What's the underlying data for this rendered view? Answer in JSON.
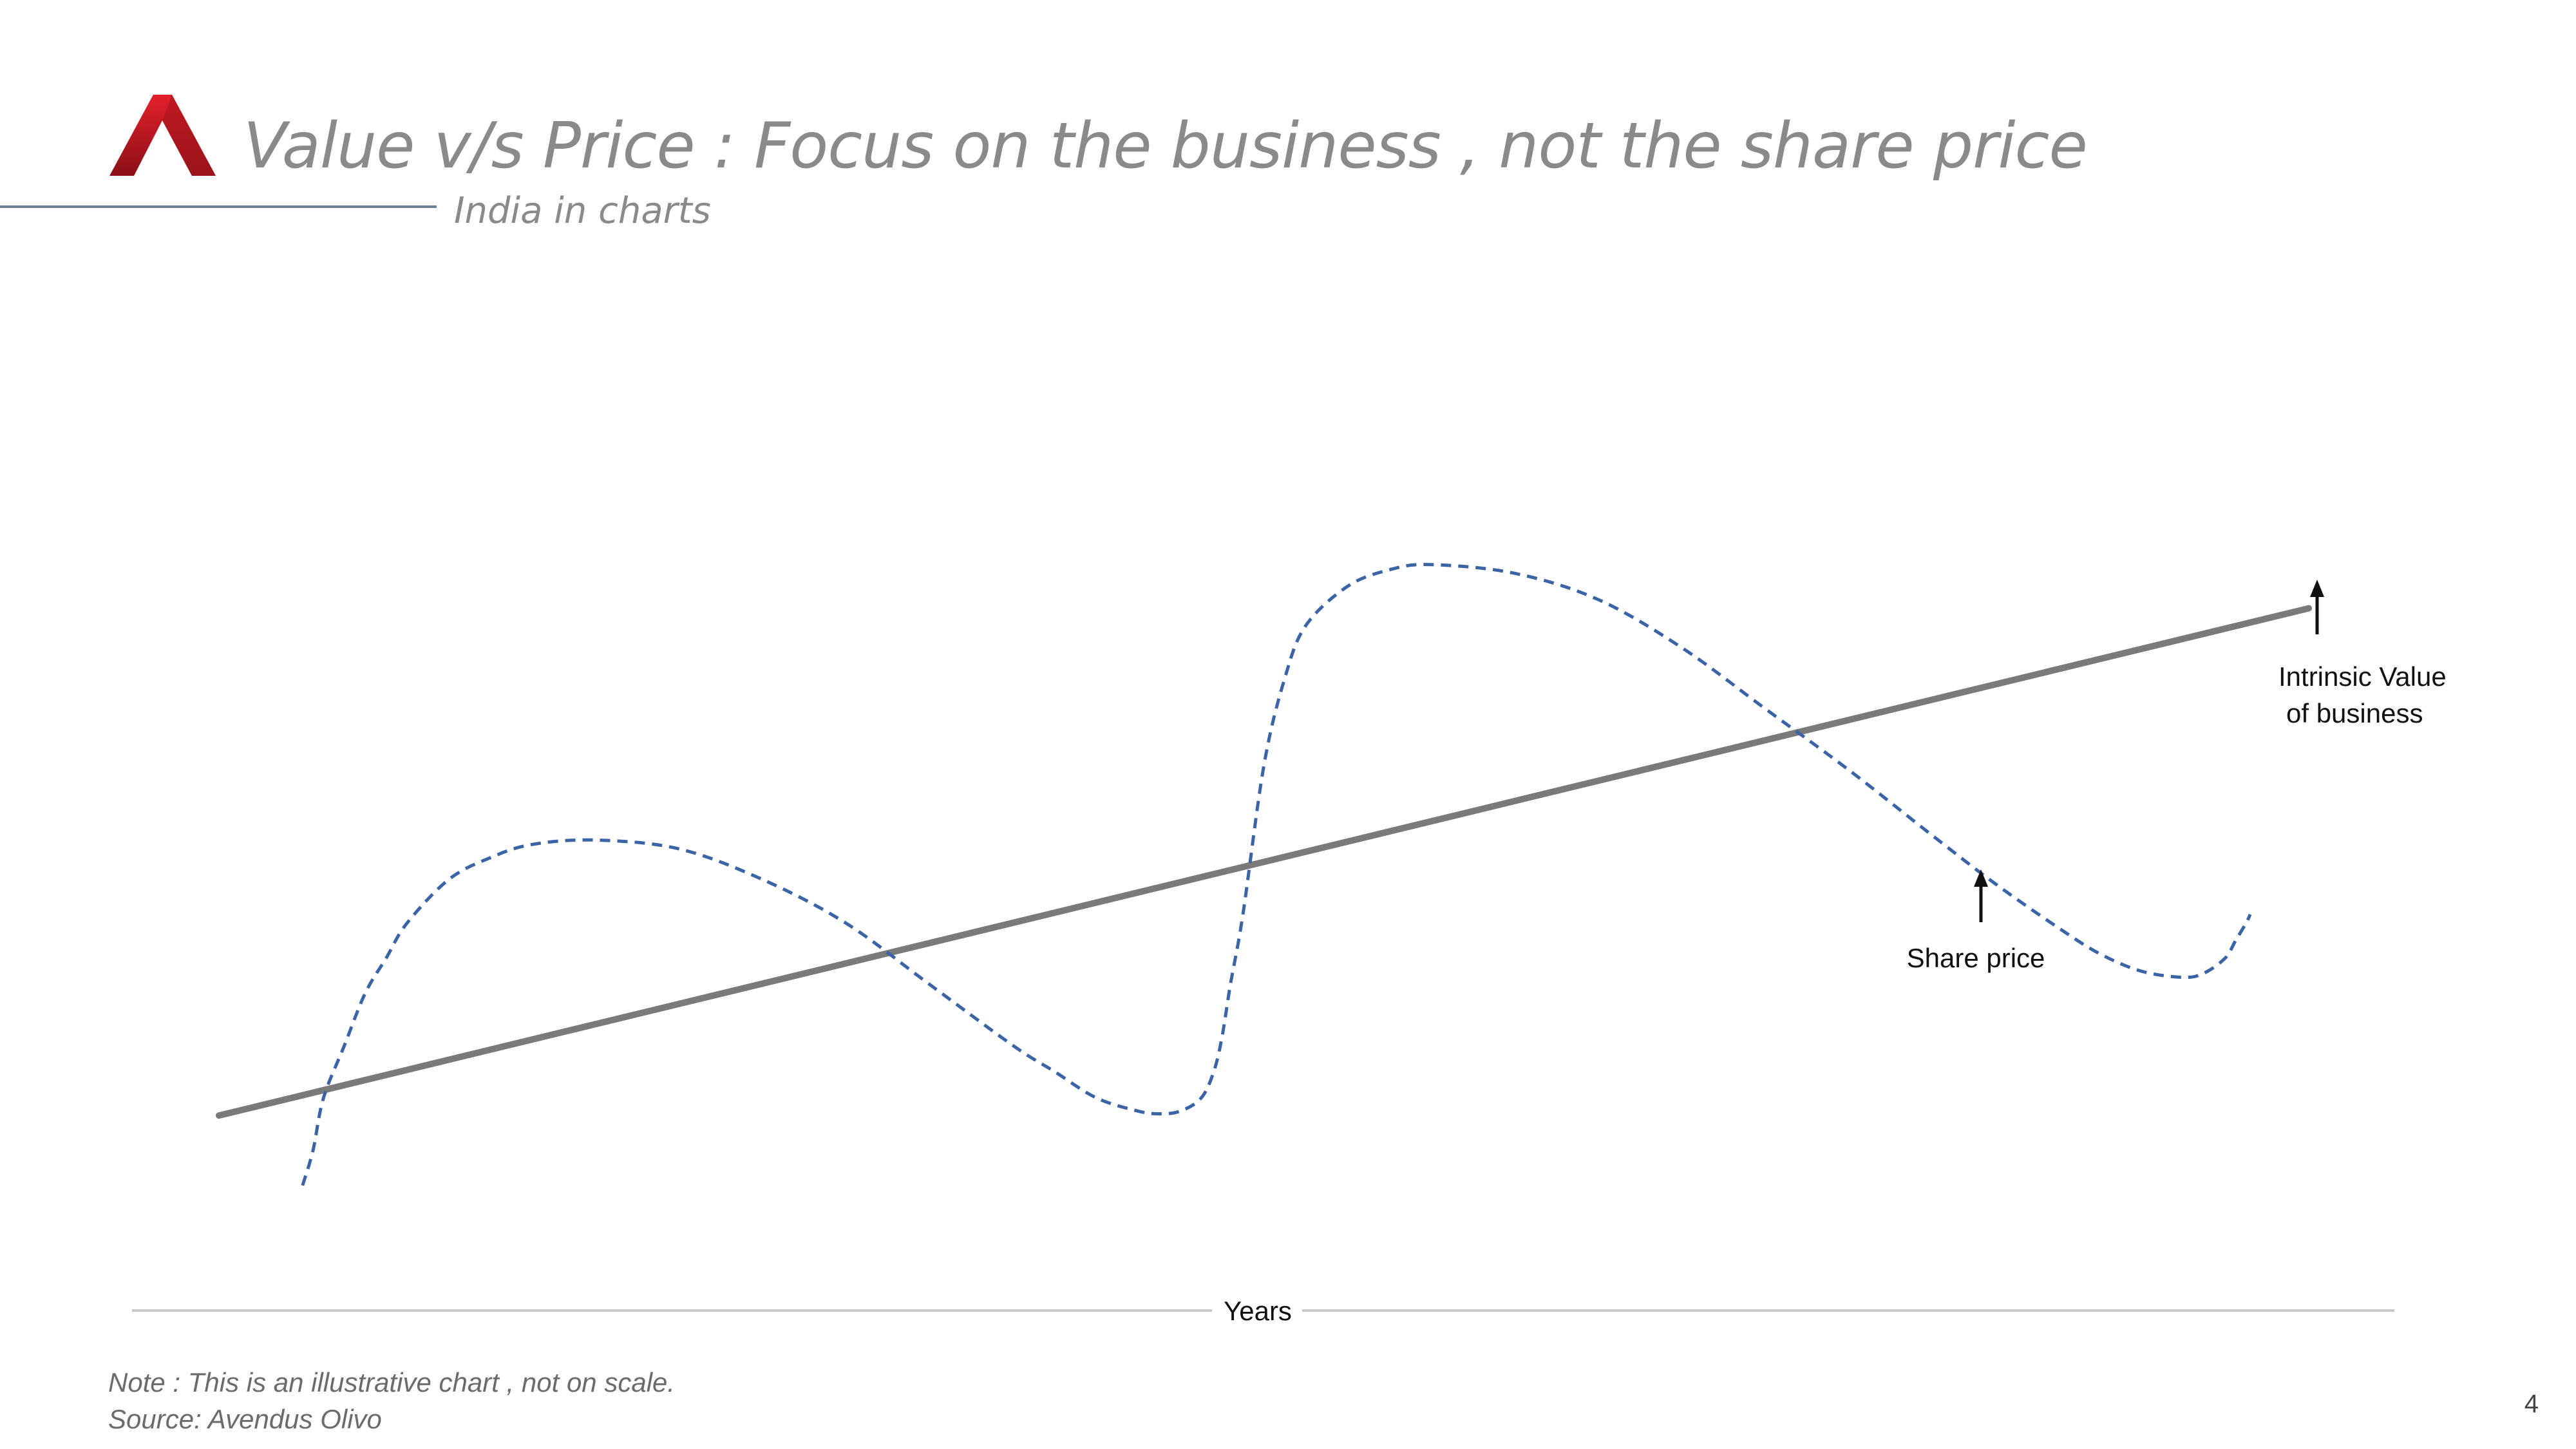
{
  "header": {
    "title": "Value v/s Price : Focus on the business , not the share price",
    "subtitle": "India in charts"
  },
  "logo": {
    "name": "red-a-logo-icon",
    "colors": [
      "#e3202a",
      "#8b0f17"
    ]
  },
  "chart_data": {
    "type": "line",
    "xlabel": "Years",
    "ylabel": "",
    "axis_ticks": false,
    "grid": false,
    "series": [
      {
        "name": "Intrinsic Value of business",
        "style": "solid",
        "color": "#7a7a7a",
        "x": [
          0,
          100
        ],
        "y": [
          10,
          68
        ]
      },
      {
        "name": "Share price",
        "style": "dashed",
        "color": "#3a64a6",
        "x": [
          4,
          4.5,
          5,
          6,
          7,
          8,
          9,
          11,
          13,
          15,
          18,
          22,
          26,
          30,
          34,
          38,
          40,
          42,
          44,
          45,
          46,
          47,
          47.6,
          48,
          48.4,
          49,
          50,
          51,
          52,
          54,
          56,
          58,
          62,
          66,
          70,
          74,
          78,
          82,
          85,
          88,
          90,
          92,
          94,
          95,
          96,
          96.5,
          97,
          97.2
        ],
        "y": [
          2,
          6,
          12,
          18,
          24,
          28,
          32,
          37,
          39.5,
          41,
          41.5,
          40.5,
          37,
          32,
          25,
          18,
          15,
          12,
          10.5,
          10.2,
          10.5,
          12,
          15,
          19,
          25,
          33,
          50,
          60,
          66,
          70.5,
          72.4,
          73,
          72,
          69,
          63.5,
          56.5,
          49.5,
          42,
          36.5,
          31.5,
          28.5,
          26.5,
          25.8,
          26.3,
          28,
          30,
          32,
          33
        ]
      }
    ],
    "annotations": [
      {
        "text_lines": [
          "Intrinsic Value",
          "of business"
        ],
        "arrow": "up"
      },
      {
        "text_lines": [
          "Share price"
        ],
        "arrow": "up"
      }
    ],
    "legend": "none"
  },
  "footer": {
    "note": "Note : This is an illustrative chart , not on scale.",
    "source": "Source: Avendus Olivo",
    "page_number": "4"
  }
}
